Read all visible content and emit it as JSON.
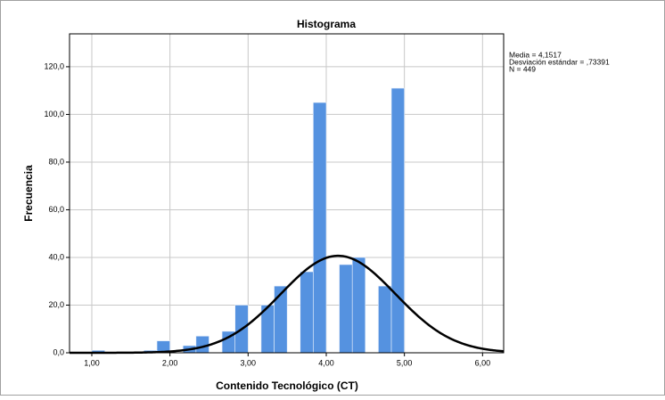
{
  "chart_data": {
    "type": "histogram",
    "title": "Histograma",
    "x_label": "Contenido Tecnológico (CT)",
    "y_label": "Frecuencia",
    "bins": [
      1,
      1.1667,
      1.3333,
      1.5,
      1.6667,
      1.8333,
      2,
      2.1667,
      2.3333,
      2.5,
      2.6667,
      2.8333,
      3,
      3.1667,
      3.3333,
      3.5,
      3.6667,
      3.8333,
      4,
      4.1667,
      4.3333,
      4.5,
      4.6667,
      4.8333,
      5
    ],
    "values": [
      1,
      0,
      0,
      0,
      1,
      5,
      0,
      3,
      7,
      0,
      9,
      20,
      0,
      20,
      28,
      0,
      34,
      105,
      0,
      37,
      40,
      0,
      28,
      111
    ],
    "color": "#5592e0",
    "curve_color": "#000000",
    "stats": [
      {
        "value": 4.1517,
        "label": "Media = 4,1517"
      },
      {
        "value": 0.73391,
        "label": "Desviación estándar = ,73391"
      },
      {
        "value": 449,
        "label": "N = 449"
      }
    ],
    "xlim": [
      0.715,
      6.27
    ],
    "ylim": [
      0,
      133.8
    ],
    "xticks": [
      {
        "value": 1,
        "label": "1,00"
      },
      {
        "value": 2,
        "label": "2,00"
      },
      {
        "value": 3,
        "label": "3,00"
      },
      {
        "value": 4,
        "label": "4,00"
      },
      {
        "value": 5,
        "label": "5,00"
      },
      {
        "value": 6,
        "label": "6,00"
      }
    ],
    "yticks": [
      {
        "value": 0,
        "label": "0,0"
      },
      {
        "value": 20,
        "label": "20,0"
      },
      {
        "value": 40,
        "label": "40,0"
      },
      {
        "value": 60,
        "label": "60,0"
      },
      {
        "value": 80,
        "label": "80,0"
      },
      {
        "value": 100,
        "label": "100,0"
      },
      {
        "value": 120,
        "label": "120,0"
      }
    ],
    "grid": true
  }
}
